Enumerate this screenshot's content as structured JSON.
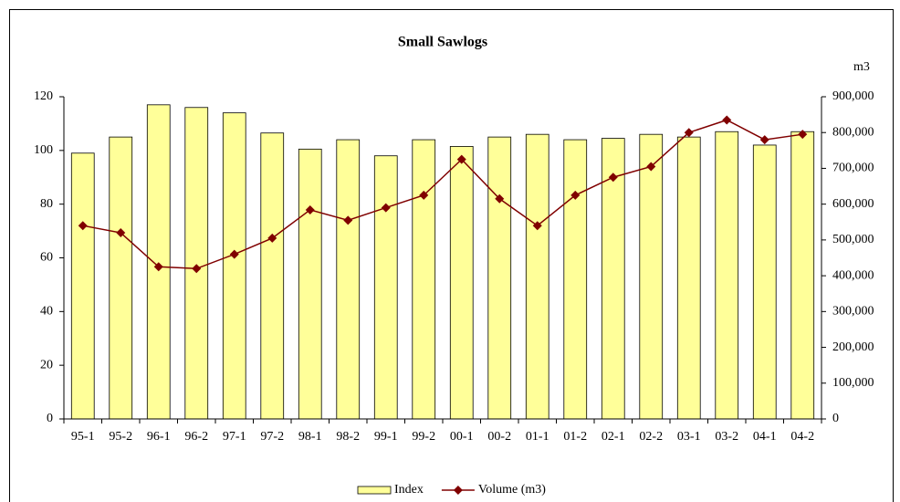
{
  "chart_data": {
    "type": "bar-line",
    "title": "Small Sawlogs",
    "y2_label": "m3",
    "categories": [
      "95-1",
      "95-2",
      "96-1",
      "96-2",
      "97-1",
      "97-2",
      "98-1",
      "98-2",
      "99-1",
      "99-2",
      "00-1",
      "00-2",
      "01-1",
      "01-2",
      "02-1",
      "02-2",
      "03-1",
      "03-2",
      "04-1",
      "04-2"
    ],
    "series": [
      {
        "name": "Index",
        "type": "bar",
        "color": "#ffff99",
        "values": [
          99,
          105,
          117,
          116,
          114,
          106.5,
          100.5,
          104,
          98,
          104,
          101.5,
          105,
          106,
          104,
          104.5,
          106,
          105,
          107,
          102,
          107
        ]
      },
      {
        "name": "Volume (m3)",
        "type": "line",
        "axis": "y2",
        "color": "#800000",
        "values": [
          540000,
          520000,
          425000,
          420000,
          460000,
          505000,
          584000,
          555000,
          590000,
          625000,
          725000,
          615000,
          540000,
          625000,
          675000,
          705000,
          800000,
          835000,
          780000,
          795000
        ]
      }
    ],
    "ylim": [
      0,
      120
    ],
    "yticks": [
      0,
      20,
      40,
      60,
      80,
      100,
      120
    ],
    "y2lim": [
      0,
      900000
    ],
    "y2ticks": [
      0,
      {
        "value": 100000,
        "label": "100,000"
      },
      {
        "value": 200000,
        "label": "200,000"
      },
      {
        "value": 300000,
        "label": "300,000"
      },
      {
        "value": 400000,
        "label": "400,000"
      },
      {
        "value": 500000,
        "label": "500,000"
      },
      {
        "value": 600000,
        "label": "600,000"
      },
      {
        "value": 700000,
        "label": "700,000"
      },
      {
        "value": 800000,
        "label": "800,000"
      },
      {
        "value": 900000,
        "label": "900,000"
      }
    ],
    "grid": false
  }
}
